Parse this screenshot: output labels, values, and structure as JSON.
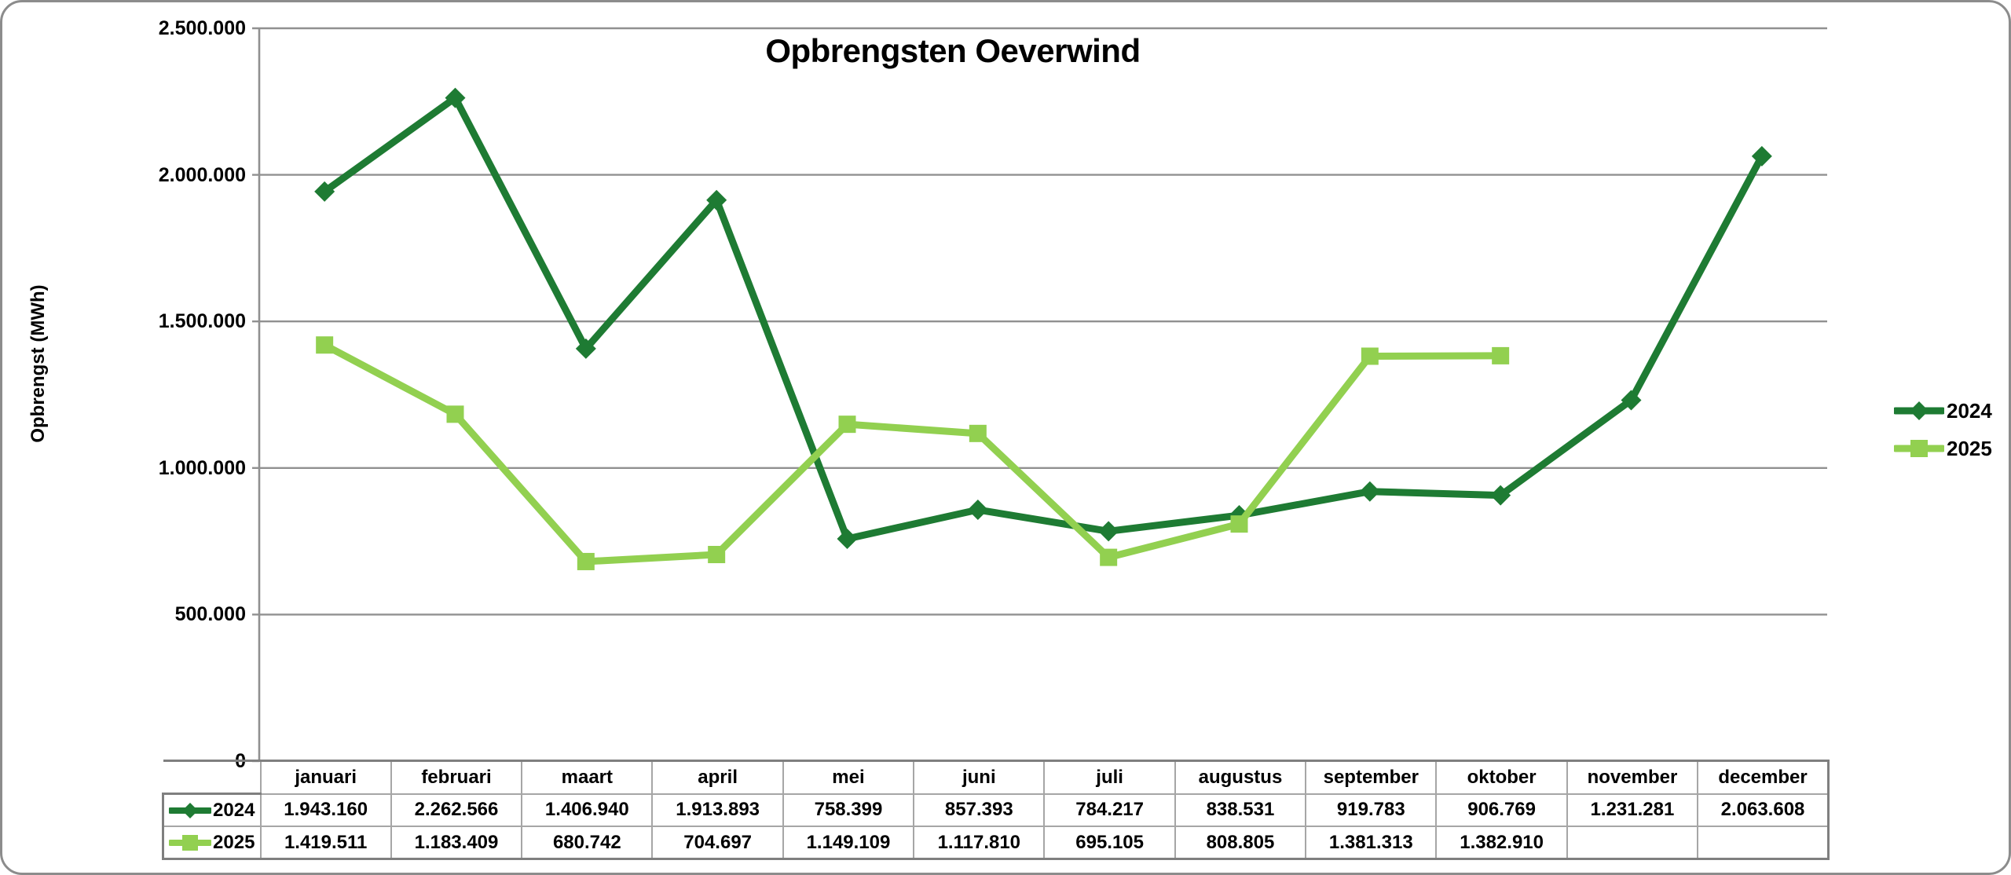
{
  "figure": {
    "title": "Opbrengsten Oeverwind",
    "y_axis_title": "Opbrengst (MWh)"
  },
  "colors": {
    "series_2024": "#1e7b33",
    "series_2025": "#92d050",
    "gridline": "#909090",
    "axis_line": "#8c8c8c",
    "table_border": "#a6a6a6",
    "table_outer_border": "#7f7f7f",
    "figure_border": "#8c8c8c",
    "text": "#000000",
    "background": "#ffffff"
  },
  "chart_data": {
    "type": "line",
    "title": "Opbrengsten Oeverwind",
    "xlabel": "",
    "ylabel": "Opbrengst (MWh)",
    "ylim": [
      0,
      2500000
    ],
    "ytick_values": [
      0,
      500000,
      1000000,
      1500000,
      2000000,
      2500000
    ],
    "ytick_labels": [
      "0",
      "500.000",
      "1.000.000",
      "1.500.000",
      "2.000.000",
      "2.500.000"
    ],
    "grid": "horizontal",
    "legend_position": "right",
    "categories": [
      "januari",
      "februari",
      "maart",
      "april",
      "mei",
      "juni",
      "juli",
      "augustus",
      "september",
      "oktober",
      "november",
      "december"
    ],
    "series": [
      {
        "name": "2024",
        "marker": "diamond",
        "color": "#1e7b33",
        "values": [
          1943160,
          2262566,
          1406940,
          1913893,
          758399,
          857393,
          784217,
          838531,
          919783,
          906769,
          1231281,
          2063608
        ]
      },
      {
        "name": "2025",
        "marker": "square",
        "color": "#92d050",
        "values": [
          1419511,
          1183409,
          680742,
          704697,
          1149109,
          1117810,
          695105,
          808805,
          1381313,
          1382910,
          null,
          null
        ]
      }
    ]
  },
  "table": {
    "columns": [
      "januari",
      "februari",
      "maart",
      "april",
      "mei",
      "juni",
      "juli",
      "augustus",
      "september",
      "oktober",
      "november",
      "december"
    ],
    "rows": [
      {
        "label": "2024",
        "marker": "diamond",
        "color": "#1e7b33",
        "cells": [
          "1.943.160",
          "2.262.566",
          "1.406.940",
          "1.913.893",
          "758.399",
          "857.393",
          "784.217",
          "838.531",
          "919.783",
          "906.769",
          "1.231.281",
          "2.063.608"
        ]
      },
      {
        "label": "2025",
        "marker": "square",
        "color": "#92d050",
        "cells": [
          "1.419.511",
          "1.183.409",
          "680.742",
          "704.697",
          "1.149.109",
          "1.117.810",
          "695.105",
          "808.805",
          "1.381.313",
          "1.382.910",
          "",
          ""
        ]
      }
    ]
  },
  "legend": {
    "items": [
      {
        "label": "2024",
        "marker": "diamond",
        "color": "#1e7b33"
      },
      {
        "label": "2025",
        "marker": "square",
        "color": "#92d050"
      }
    ]
  }
}
